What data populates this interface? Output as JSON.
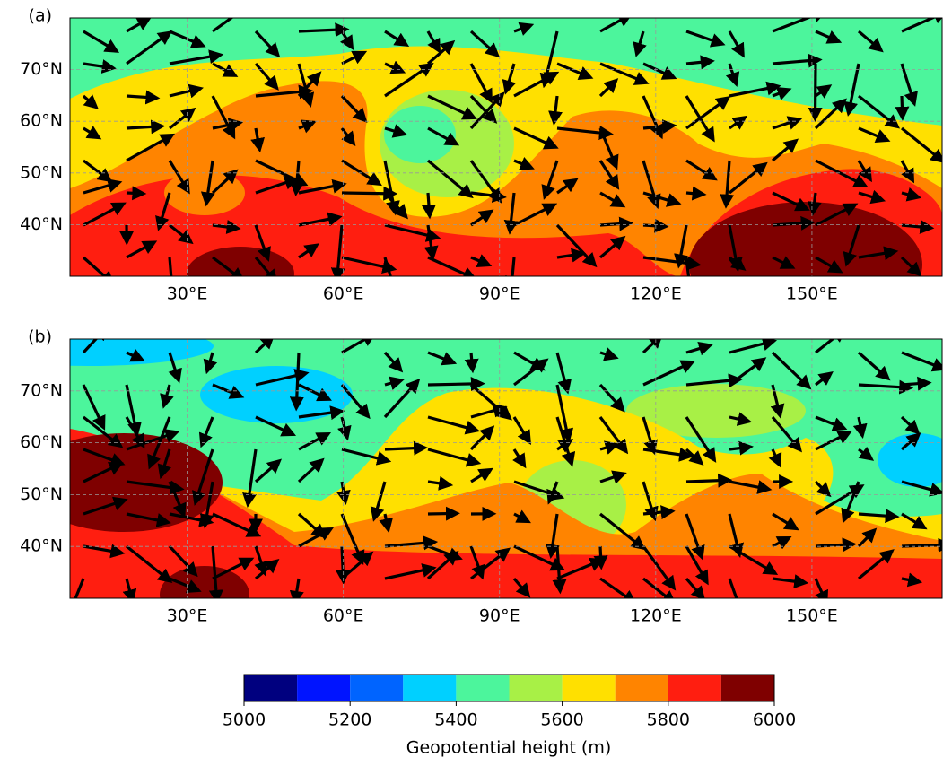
{
  "panels": [
    {
      "label": "(a)",
      "xlim": [
        7.5,
        175
      ],
      "ylim": [
        30,
        80
      ],
      "xticks": [
        {
          "value": 30,
          "label": "30°E"
        },
        {
          "value": 60,
          "label": "60°E"
        },
        {
          "value": 90,
          "label": "90°E"
        },
        {
          "value": 120,
          "label": "120°E"
        },
        {
          "value": 150,
          "label": "150°E"
        }
      ],
      "yticks": [
        {
          "value": 40,
          "label": "40°N"
        },
        {
          "value": 50,
          "label": "50°N"
        },
        {
          "value": 60,
          "label": "60°N"
        },
        {
          "value": 70,
          "label": "70°N"
        }
      ]
    },
    {
      "label": "(b)",
      "xlim": [
        7.5,
        175
      ],
      "ylim": [
        30,
        80
      ],
      "xticks": [
        {
          "value": 30,
          "label": "30°E"
        },
        {
          "value": 60,
          "label": "60°E"
        },
        {
          "value": 90,
          "label": "90°E"
        },
        {
          "value": 120,
          "label": "120°E"
        },
        {
          "value": 150,
          "label": "150°E"
        }
      ],
      "yticks": [
        {
          "value": 40,
          "label": "40°N"
        },
        {
          "value": 50,
          "label": "50°N"
        },
        {
          "value": 60,
          "label": "60°N"
        },
        {
          "value": 70,
          "label": "70°N"
        }
      ]
    }
  ],
  "colorbar": {
    "label": "Geopotential height (m)",
    "levels": [
      5000,
      5100,
      5200,
      5300,
      5400,
      5500,
      5600,
      5700,
      5800,
      5900,
      6000
    ],
    "colors": [
      "#00007f",
      "#0014ff",
      "#0064ff",
      "#00d0ff",
      "#4cf59c",
      "#a8f046",
      "#ffe000",
      "#ff8400",
      "#ff1e10",
      "#7f0000"
    ],
    "ticks": [
      5000,
      5200,
      5400,
      5600,
      5800,
      6000
    ]
  }
}
